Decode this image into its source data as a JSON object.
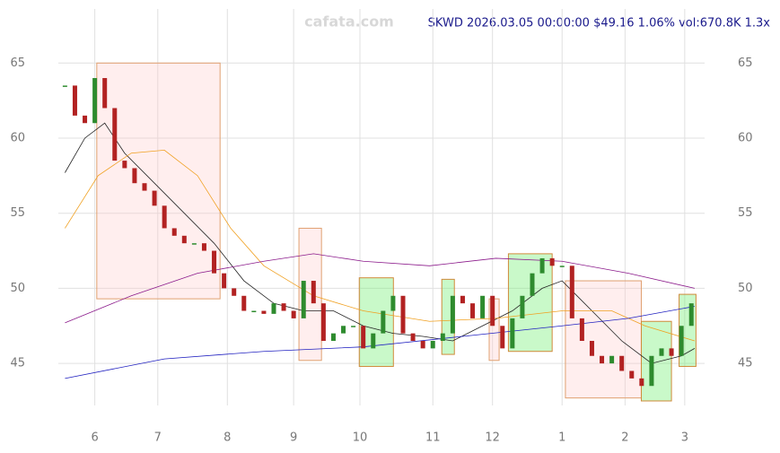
{
  "chart_data": {
    "type": "candlestick",
    "title": "SKWD 2026.03.05 00:00:00 $49.16 1.06% vol:670.8K 1.3x",
    "watermark": "cafata.com",
    "xlim": [
      -2,
      193
    ],
    "ylim": [
      42.2,
      68.6
    ],
    "xticks": [
      {
        "value": 9,
        "label": "6"
      },
      {
        "value": 28,
        "label": "7"
      },
      {
        "value": 49,
        "label": "8"
      },
      {
        "value": 69,
        "label": "9"
      },
      {
        "value": 89,
        "label": "10"
      },
      {
        "value": 111,
        "label": "11"
      },
      {
        "value": 129,
        "label": "12"
      },
      {
        "value": 150,
        "label": "1"
      },
      {
        "value": 169,
        "label": "2"
      },
      {
        "value": 187,
        "label": "3"
      }
    ],
    "yticks": [
      45,
      50,
      55,
      60,
      65
    ],
    "grid": true,
    "up_color": "#2e8b2e",
    "down_color": "#b22222",
    "x": [
      0,
      3,
      6,
      9,
      12,
      15,
      18,
      21,
      24,
      27,
      30,
      33,
      36,
      39,
      42,
      45,
      48,
      51,
      54,
      57,
      60,
      63,
      66,
      69,
      72,
      75,
      78,
      81,
      84,
      87,
      90,
      93,
      96,
      99,
      102,
      105,
      108,
      111,
      114,
      117,
      120,
      123,
      126,
      129,
      132,
      135,
      138,
      141,
      144,
      147,
      150,
      153,
      156,
      159,
      162,
      165,
      168,
      171,
      174,
      177,
      180,
      183,
      186,
      189
    ],
    "series": [
      {
        "color": "#b22222",
        "values": [
          63.5,
          61.5,
          61,
          64,
          62,
          58.5,
          58,
          57,
          56.5,
          55.5,
          54,
          53.5,
          53,
          53,
          52.5,
          51,
          50,
          49.5,
          48.5,
          48.5,
          48.3,
          49,
          48.5,
          48,
          50.5,
          49,
          46.5,
          47,
          47.5,
          47.5,
          46,
          47,
          48.5,
          49.5,
          47,
          46.5,
          46,
          46.5,
          47,
          49.5,
          49,
          48,
          49.5,
          47.5,
          46,
          48,
          49.5,
          51,
          52,
          51.5,
          51.5,
          48,
          46.5,
          45.5,
          45,
          45.5,
          44.5,
          44,
          43.5,
          45.5,
          46,
          45.5,
          47.5,
          49
        ]
      }
    ],
    "lines": [
      {
        "color": "#222222",
        "x": [
          0,
          6,
          12,
          18,
          27,
          36,
          45,
          54,
          63,
          72,
          81,
          90,
          99,
          108,
          117,
          126,
          135,
          144,
          150,
          159,
          168,
          177,
          186,
          190
        ],
        "values": [
          57.7,
          60,
          61,
          59,
          57,
          55,
          53,
          50.5,
          49,
          48.5,
          48.5,
          47.5,
          47,
          46.8,
          46.5,
          47.5,
          48.5,
          50,
          50.5,
          48.5,
          46.5,
          45,
          45.5,
          46
        ]
      },
      {
        "color": "#f0a020",
        "x": [
          0,
          10,
          20,
          30,
          40,
          50,
          60,
          75,
          90,
          110,
          130,
          150,
          165,
          175,
          190
        ],
        "values": [
          54,
          57.5,
          59,
          59.2,
          57.5,
          54,
          51.5,
          49.5,
          48.5,
          47.8,
          48,
          48.5,
          48.5,
          47.5,
          46.5
        ]
      },
      {
        "color": "#8b1a8b",
        "x": [
          0,
          20,
          40,
          60,
          75,
          90,
          110,
          130,
          150,
          170,
          190
        ],
        "values": [
          47.7,
          49.5,
          51,
          51.8,
          52.3,
          51.8,
          51.5,
          52,
          51.8,
          51,
          50
        ]
      },
      {
        "color": "#2020c0",
        "x": [
          0,
          30,
          60,
          90,
          120,
          150,
          170,
          190
        ],
        "values": [
          44,
          45.3,
          45.8,
          46.1,
          46.8,
          47.5,
          48,
          48.8
        ]
      }
    ],
    "zones": [
      {
        "kind": "down",
        "x": [
          9.6,
          46.8
        ],
        "y": [
          49.3,
          65
        ]
      },
      {
        "kind": "down",
        "x": [
          70.6,
          77.4
        ],
        "y": [
          45.2,
          54
        ]
      },
      {
        "kind": "up",
        "x": [
          88.8,
          99.1
        ],
        "y": [
          44.8,
          50.7
        ]
      },
      {
        "kind": "up",
        "x": [
          113.7,
          117.5
        ],
        "y": [
          45.6,
          50.6
        ]
      },
      {
        "kind": "down",
        "x": [
          128,
          131
        ],
        "y": [
          45.2,
          49.3
        ]
      },
      {
        "kind": "up",
        "x": [
          133.8,
          147
        ],
        "y": [
          45.8,
          52.3
        ]
      },
      {
        "kind": "down",
        "x": [
          151,
          173.9
        ],
        "y": [
          42.7,
          50.5
        ]
      },
      {
        "kind": "up",
        "x": [
          173.9,
          183
        ],
        "y": [
          42.5,
          47.8
        ]
      },
      {
        "kind": "up",
        "x": [
          185.3,
          190.4
        ],
        "y": [
          44.8,
          49.6
        ]
      }
    ]
  }
}
